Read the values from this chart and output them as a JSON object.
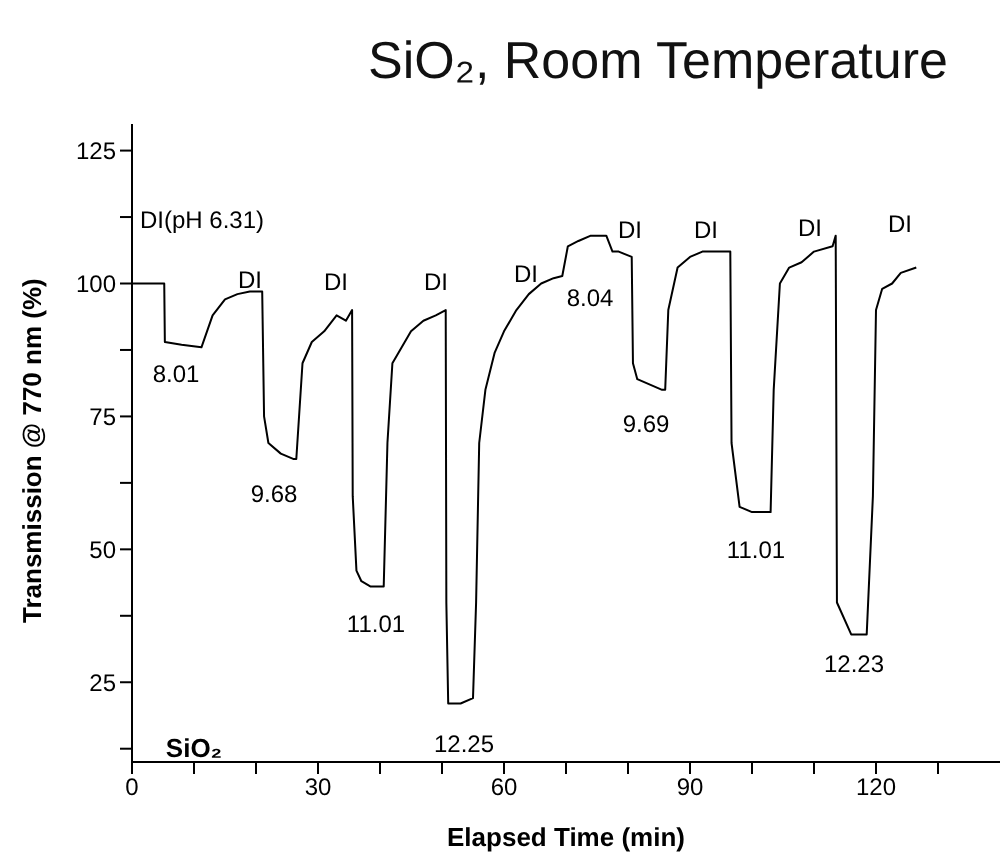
{
  "chart_data": {
    "type": "line",
    "title": "SiO₂, Room Temperature",
    "xlabel": "Elapsed Time (min)",
    "ylabel": "Transmission @ 770 nm (%)",
    "x": [
      0,
      5.2,
      5.3,
      8,
      11.2,
      13,
      15,
      17,
      19,
      20.8,
      21,
      21.3,
      22,
      24,
      26,
      26.5,
      27.5,
      29,
      31,
      33,
      34.5,
      35.5,
      35.6,
      36.2,
      37,
      38.5,
      40.6,
      41.2,
      42,
      43.5,
      45,
      47,
      49,
      50.6,
      50.7,
      51,
      53,
      55,
      55.5,
      56,
      57,
      58.5,
      60,
      62,
      64,
      66,
      68,
      69.4,
      70.3,
      72,
      74,
      76.5,
      77.5,
      78.5,
      80.6,
      80.8,
      81.5,
      85.5,
      86,
      86.5,
      88,
      90,
      92,
      94,
      95.5,
      96.5,
      96.7,
      98,
      100,
      103,
      103.5,
      104.5,
      106,
      108,
      110,
      113,
      113.5,
      113.7,
      116,
      118,
      118.5,
      119.5,
      120,
      121,
      122.6,
      124,
      126.5
    ],
    "series": [
      {
        "color": "#000000",
        "values": [
          100,
          100,
          89,
          88.5,
          88,
          94,
          97,
          98,
          98.5,
          98.5,
          98.5,
          75,
          70,
          68,
          67,
          67,
          85,
          89,
          91,
          94,
          93,
          95,
          60,
          46,
          44,
          43,
          43,
          70,
          85,
          88,
          91,
          93,
          94,
          95,
          40,
          21,
          21,
          22,
          40,
          70,
          80,
          87,
          91,
          95,
          98,
          100,
          101,
          101.4,
          107,
          108,
          109,
          109,
          106,
          106,
          105,
          85,
          82,
          80,
          80,
          95,
          103,
          105,
          106,
          106,
          106,
          106,
          70,
          58,
          57,
          57,
          80,
          100,
          103,
          104,
          106,
          107,
          109,
          40,
          34,
          34,
          34,
          60,
          95,
          99,
          100,
          102,
          103
        ]
      }
    ],
    "xlim": [
      0,
      140
    ],
    "xticks": [
      0,
      {
        "value": 10,
        "label": null
      },
      {
        "value": 20,
        "label": null
      },
      30,
      {
        "value": 40,
        "label": null
      },
      {
        "value": 50,
        "label": null
      },
      60,
      {
        "value": 70,
        "label": null
      },
      {
        "value": 80,
        "label": null
      },
      90,
      {
        "value": 100,
        "label": null
      },
      {
        "value": 110,
        "label": null
      },
      120,
      {
        "value": 130,
        "label": null
      }
    ],
    "ylim": [
      10,
      130
    ],
    "yticks": [
      {
        "value": 12.5,
        "label": null
      },
      25,
      {
        "value": 37.5,
        "label": null
      },
      50,
      {
        "value": 62.5,
        "label": null
      },
      75,
      {
        "value": 87.5,
        "label": null
      },
      100,
      {
        "value": 112.5,
        "label": null
      },
      125
    ],
    "grid": false,
    "legend": false,
    "marker": "none",
    "line_style": "solid",
    "annotations": [
      "DI(pH 6.31)",
      "8.01",
      "DI",
      "9.68",
      "DI",
      "11.01",
      "DI",
      "12.25",
      "DI",
      "8.04",
      "DI",
      "9.69",
      "DI",
      "11.01",
      "DI",
      "12.23",
      "DI",
      "SiO₂"
    ]
  }
}
